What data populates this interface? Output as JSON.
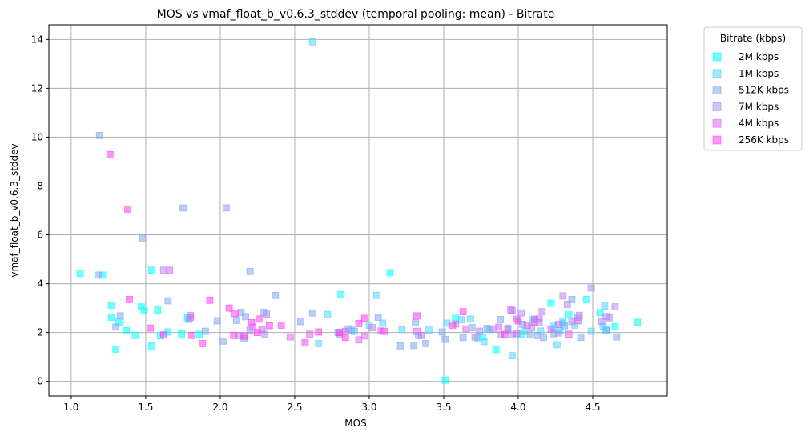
{
  "chart_data": {
    "type": "scatter",
    "title": "MOS vs vmaf_float_b_v0.6.3_stddev (temporal pooling: mean) - Bitrate",
    "xlabel": "MOS",
    "ylabel": "vmaf_float_b_v0.6.3_stddev",
    "xlim": [
      0.85,
      5.0
    ],
    "ylim": [
      -0.6,
      14.6
    ],
    "xticks": [
      1.0,
      1.5,
      2.0,
      2.5,
      3.0,
      3.5,
      4.0,
      4.5
    ],
    "xtick_labels": [
      "1.0",
      "1.5",
      "2.0",
      "2.5",
      "3.0",
      "3.5",
      "4.0",
      "4.5"
    ],
    "yticks": [
      0,
      2,
      4,
      6,
      8,
      10,
      12,
      14
    ],
    "ytick_labels": [
      "0",
      "2",
      "4",
      "6",
      "8",
      "10",
      "12",
      "14"
    ],
    "grid": true,
    "legend": {
      "title": "Bitrate (kbps)",
      "placement": "outside-top-right"
    },
    "series": [
      {
        "name": "2M kbps",
        "color": "#00ffff",
        "points": [
          [
            1.06,
            4.42
          ],
          [
            1.21,
            4.35
          ],
          [
            1.27,
            3.12
          ],
          [
            1.27,
            2.63
          ],
          [
            1.3,
            1.32
          ],
          [
            1.32,
            2.42
          ],
          [
            1.37,
            2.08
          ],
          [
            1.43,
            1.88
          ],
          [
            1.47,
            3.05
          ],
          [
            1.49,
            2.88
          ],
          [
            1.54,
            4.55
          ],
          [
            1.54,
            1.45
          ],
          [
            1.58,
            2.92
          ],
          [
            1.6,
            1.86
          ],
          [
            1.65,
            2.02
          ],
          [
            1.74,
            1.94
          ],
          [
            1.78,
            2.6
          ],
          [
            1.86,
            1.92
          ],
          [
            2.81,
            3.55
          ],
          [
            3.14,
            4.45
          ],
          [
            3.51,
            0.05
          ],
          [
            3.58,
            2.58
          ],
          [
            3.76,
            1.82
          ],
          [
            3.85,
            1.3
          ],
          [
            4.02,
            1.93
          ],
          [
            4.22,
            3.2
          ],
          [
            4.24,
            2.26
          ],
          [
            4.28,
            2.08
          ],
          [
            4.3,
            2.38
          ],
          [
            4.34,
            2.72
          ],
          [
            4.46,
            3.35
          ],
          [
            4.55,
            2.81
          ],
          [
            4.59,
            2.12
          ],
          [
            4.65,
            2.24
          ],
          [
            4.8,
            2.42
          ]
        ]
      },
      {
        "name": "1M kbps",
        "color": "#55d4ff",
        "points": [
          [
            2.62,
            13.9
          ],
          [
            3.05,
            3.52
          ],
          [
            2.72,
            2.74
          ],
          [
            2.66,
            1.55
          ],
          [
            2.88,
            2.1
          ],
          [
            3.0,
            2.3
          ],
          [
            3.09,
            2.38
          ],
          [
            3.22,
            2.12
          ],
          [
            3.33,
            1.88
          ],
          [
            3.4,
            2.1
          ],
          [
            3.52,
            2.38
          ],
          [
            3.62,
            2.52
          ],
          [
            3.68,
            2.55
          ],
          [
            3.73,
            1.78
          ],
          [
            3.77,
            1.63
          ],
          [
            3.81,
            2.12
          ],
          [
            3.96,
            1.05
          ],
          [
            4.04,
            2.05
          ],
          [
            4.1,
            2.52
          ],
          [
            4.15,
            2.06
          ],
          [
            4.26,
            1.5
          ],
          [
            4.3,
            2.45
          ],
          [
            4.38,
            2.3
          ],
          [
            4.49,
            2.05
          ],
          [
            4.57,
            2.25
          ],
          [
            4.58,
            3.08
          ]
        ]
      },
      {
        "name": "512K kbps",
        "color": "#80a8f0",
        "points": [
          [
            1.19,
            10.07
          ],
          [
            1.18,
            4.35
          ],
          [
            1.33,
            2.68
          ],
          [
            1.3,
            2.22
          ],
          [
            1.48,
            5.85
          ],
          [
            1.75,
            7.1
          ],
          [
            2.04,
            7.1
          ],
          [
            2.2,
            4.5
          ],
          [
            1.65,
            3.3
          ],
          [
            1.79,
            2.54
          ],
          [
            1.9,
            2.05
          ],
          [
            1.98,
            2.48
          ],
          [
            2.02,
            1.65
          ],
          [
            2.11,
            2.5
          ],
          [
            2.14,
            2.82
          ],
          [
            2.16,
            1.75
          ],
          [
            2.17,
            2.65
          ],
          [
            2.29,
            2.82
          ],
          [
            2.3,
            1.92
          ],
          [
            2.37,
            3.52
          ],
          [
            2.54,
            2.45
          ],
          [
            2.62,
            2.8
          ],
          [
            2.79,
            2.0
          ],
          [
            2.86,
            2.15
          ],
          [
            2.9,
            2.05
          ],
          [
            3.06,
            2.63
          ],
          [
            3.21,
            1.45
          ],
          [
            3.3,
            1.47
          ],
          [
            3.31,
            2.4
          ],
          [
            3.38,
            1.55
          ],
          [
            3.49,
            2.02
          ],
          [
            3.51,
            1.72
          ],
          [
            3.63,
            1.8
          ],
          [
            3.69,
            2.2
          ],
          [
            3.79,
            2.17
          ],
          [
            3.88,
            2.53
          ],
          [
            3.93,
            2.18
          ],
          [
            3.96,
            1.9
          ],
          [
            4.03,
            2.34
          ],
          [
            4.08,
            1.9
          ],
          [
            4.13,
            1.88
          ],
          [
            4.17,
            1.8
          ],
          [
            4.24,
            1.95
          ],
          [
            4.31,
            2.28
          ],
          [
            4.36,
            3.35
          ],
          [
            4.4,
            2.62
          ],
          [
            4.42,
            1.8
          ],
          [
            4.59,
            2.08
          ],
          [
            4.66,
            1.82
          ]
        ]
      },
      {
        "name": "7M kbps",
        "color": "#b08af0",
        "points": [
          [
            1.62,
            4.55
          ],
          [
            1.8,
            2.7
          ],
          [
            2.13,
            1.88
          ],
          [
            2.2,
            2.1
          ],
          [
            2.31,
            2.75
          ],
          [
            2.8,
            1.92
          ],
          [
            3.02,
            2.2
          ],
          [
            3.58,
            2.35
          ],
          [
            3.74,
            2.05
          ],
          [
            3.83,
            2.15
          ],
          [
            3.88,
            1.9
          ],
          [
            3.93,
            2.1
          ],
          [
            3.96,
            2.9
          ],
          [
            3.99,
            2.55
          ],
          [
            4.02,
            2.8
          ],
          [
            4.09,
            2.2
          ],
          [
            4.11,
            2.55
          ],
          [
            4.14,
            2.4
          ],
          [
            4.16,
            2.85
          ],
          [
            4.27,
            1.98
          ],
          [
            4.3,
            3.5
          ],
          [
            4.33,
            3.15
          ],
          [
            4.36,
            2.45
          ],
          [
            4.41,
            2.7
          ],
          [
            4.49,
            3.82
          ],
          [
            4.56,
            2.45
          ],
          [
            4.59,
            2.65
          ],
          [
            4.65,
            3.05
          ],
          [
            4.61,
            2.6
          ],
          [
            3.71,
            1.82
          ]
        ]
      },
      {
        "name": "4M kbps",
        "color": "#d86af0",
        "points": [
          [
            1.66,
            4.55
          ],
          [
            1.8,
            2.62
          ],
          [
            2.22,
            2.22
          ],
          [
            2.28,
            2.12
          ],
          [
            2.47,
            1.82
          ],
          [
            2.6,
            1.93
          ],
          [
            2.84,
            2.05
          ],
          [
            2.93,
            1.7
          ],
          [
            2.97,
            1.86
          ],
          [
            3.08,
            2.06
          ],
          [
            3.32,
            2.05
          ],
          [
            3.35,
            1.88
          ],
          [
            3.65,
            2.15
          ],
          [
            3.87,
            2.22
          ],
          [
            3.95,
            2.92
          ],
          [
            3.99,
            1.96
          ],
          [
            4.06,
            2.3
          ],
          [
            4.11,
            2.42
          ],
          [
            4.14,
            2.55
          ],
          [
            4.22,
            2.15
          ],
          [
            4.27,
            2.33
          ],
          [
            4.34,
            1.93
          ],
          [
            4.4,
            2.48
          ]
        ]
      },
      {
        "name": "256K kbps",
        "color": "#ff40f0",
        "points": [
          [
            1.26,
            9.28
          ],
          [
            1.38,
            7.05
          ],
          [
            1.39,
            3.35
          ],
          [
            1.53,
            2.18
          ],
          [
            1.62,
            1.9
          ],
          [
            1.81,
            1.88
          ],
          [
            1.88,
            1.55
          ],
          [
            1.93,
            3.32
          ],
          [
            2.06,
            3.0
          ],
          [
            2.09,
            1.88
          ],
          [
            2.1,
            2.78
          ],
          [
            2.16,
            1.85
          ],
          [
            2.21,
            2.4
          ],
          [
            2.25,
            2.0
          ],
          [
            2.26,
            2.55
          ],
          [
            2.33,
            2.28
          ],
          [
            2.41,
            2.3
          ],
          [
            2.57,
            1.58
          ],
          [
            2.66,
            2.02
          ],
          [
            2.8,
            2.0
          ],
          [
            2.84,
            1.8
          ],
          [
            2.93,
            2.37
          ],
          [
            2.97,
            2.58
          ],
          [
            3.1,
            2.05
          ],
          [
            3.32,
            2.68
          ],
          [
            3.56,
            2.3
          ],
          [
            3.63,
            2.85
          ],
          [
            3.91,
            1.92
          ],
          [
            4.0,
            2.48
          ]
        ]
      }
    ]
  }
}
